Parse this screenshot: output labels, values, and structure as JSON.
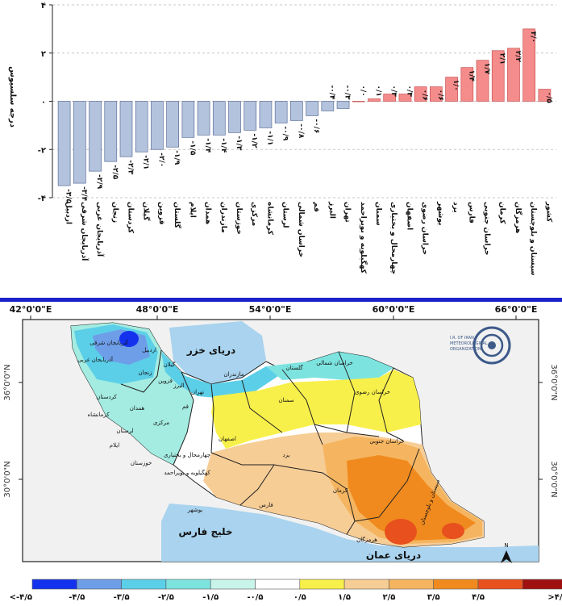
{
  "chart_data": {
    "type": "bar",
    "ylabel": "درجه سلسیوس",
    "ylim": [
      -4,
      4
    ],
    "yticks": [
      {
        "value": 4,
        "label": "۴"
      },
      {
        "value": 2,
        "label": "۲"
      },
      {
        "value": 0,
        "label": "۰"
      },
      {
        "value": -2,
        "label": "-۲"
      },
      {
        "value": -4,
        "label": "-۴"
      }
    ],
    "colors": {
      "negative": "#b4c3dd",
      "positive": "#f58c8c",
      "negative_edge": "#5a6e98",
      "positive_edge": "#c85050"
    },
    "categories": [
      "اردبیل",
      "آذربایجان شرقی",
      "آذربایجان غربی",
      "زنجان",
      "کردستان",
      "گیلان",
      "قزوین",
      "گلستان",
      "ایلام",
      "همدان",
      "مازندران",
      "خوزستان",
      "مرکزی",
      "کرمانشاه",
      "لرستان",
      "خراسان شمالی",
      "قم",
      "البرز",
      "تهران",
      "کهگیلویه و بویراحمد",
      "سمنان",
      "چهارمحال و بختیاری",
      "اصفهان",
      "خراسان رضوی",
      "بوشهر",
      "یزد",
      "فارس",
      "خراسان جنوبی",
      "کرمان",
      "هرمزگان",
      "سیستان و بلوچستان",
      "کشور"
    ],
    "values": [
      -3.5,
      -3.4,
      -2.9,
      -2.5,
      -2.3,
      -2.1,
      -2.0,
      -1.9,
      -1.5,
      -1.4,
      -1.4,
      -1.3,
      -1.2,
      -1.1,
      -0.9,
      -0.8,
      -0.6,
      -0.4,
      -0.3,
      0.0,
      0.1,
      0.3,
      0.3,
      0.6,
      0.6,
      1.0,
      1.4,
      1.7,
      2.1,
      2.2,
      3.0,
      0.5
    ],
    "labels": [
      "-۳/۵",
      "-۳/۴",
      "-۲/۹",
      "-۲/۵",
      "-۲/۳",
      "-۲/۱",
      "-۲/۰",
      "-۱/۹",
      "-۱/۵",
      "-۱/۴",
      "-۱/۴",
      "-۱/۳",
      "-۱/۲",
      "-۱/۱",
      "-۰/۹",
      "-۰/۸",
      "-۰/۶",
      "-۰/۴",
      "-۰/۳",
      "۰/۰",
      "۰/۱",
      "۰/۳",
      "۰/۳",
      "۰/۶",
      "۰/۶",
      "۱/۰",
      "۱/۴",
      "۱/۷",
      "۲/۱",
      "۲/۲",
      "۳/۰",
      "۰/۵"
    ]
  },
  "map": {
    "longitude_labels": [
      "42°0'0\"E",
      "48°0'0\"E",
      "54°0'0\"E",
      "60°0'0\"E",
      "66°0'0\"E"
    ],
    "latitude_labels": [
      "36°0'0\"N",
      "30°0'0\"N"
    ],
    "water_labels": {
      "caspian": "دریای خزر",
      "gulf": "خلیج فارس",
      "oman": "دریای عمان"
    },
    "province_labels": [
      "آذربایجان شرقی",
      "آذربایجان غربی",
      "کردستان",
      "کرمانشاه",
      "لرستان",
      "ایلام",
      "خوزستان",
      "همدان",
      "مرکزی",
      "قم",
      "تهران",
      "قزوین",
      "زنجان",
      "گیلان",
      "مازندران",
      "گلستان",
      "خراسان شمالی",
      "خراسان رضوی",
      "سمنان",
      "اصفهان",
      "چهارمحال و بختیاری",
      "کهگیلویه و بویراحمد",
      "یزد",
      "خراسان جنوبی",
      "کرمان",
      "فارس",
      "بوشهر",
      "هرمزگان",
      "سیستان و بلوچستان",
      "اردبیل",
      "البرز"
    ],
    "logo_text": [
      "I.R. OF IRAN",
      "METEOROLOGICAL",
      "ORGANIZATION"
    ],
    "north_arrow": "N",
    "legend": {
      "labels": [
        "<-۴/۵",
        "-۴/۵",
        "-۳/۵",
        "-۲/۵",
        "-۱/۵",
        "-۰/۵",
        "۰/۵",
        "۱/۵",
        "۲/۵",
        "۳/۵",
        "۴/۵",
        ">۴/۵"
      ],
      "colors": [
        "#1432ee",
        "#6e9ee8",
        "#5ccfe8",
        "#7de3df",
        "#c8f4ea",
        "#ffffff",
        "#f8f04a",
        "#f7cd96",
        "#f5b560",
        "#f08a1e",
        "#e8501e",
        "#a01010"
      ]
    }
  }
}
